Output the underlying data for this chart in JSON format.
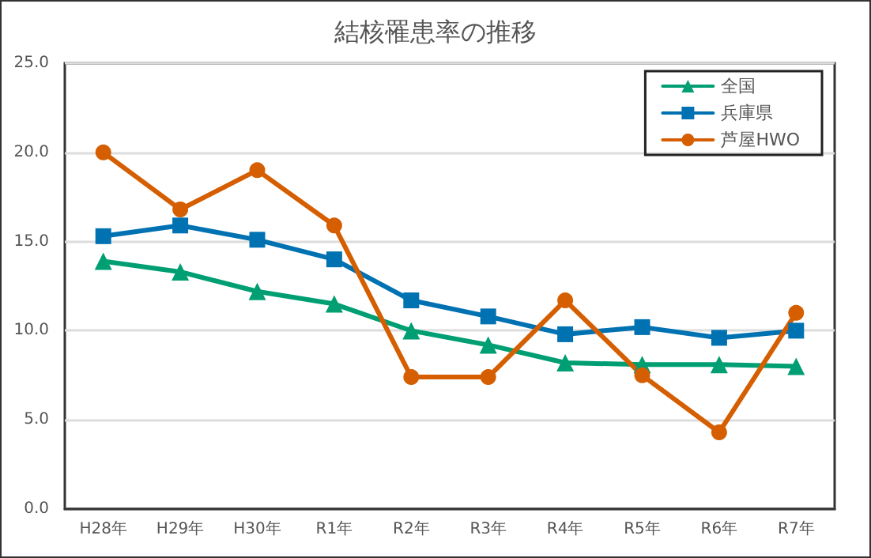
{
  "chart_data": {
    "type": "line",
    "title": "結核罹患率の推移",
    "categories": [
      "H28年",
      "H29年",
      "H30年",
      "R1年",
      "R2年",
      "R3年",
      "R4年",
      "R5年",
      "R6年",
      "R7年"
    ],
    "series": [
      {
        "name": "全国",
        "color": "#009e73",
        "marker": "triangle",
        "values": [
          13.9,
          13.3,
          12.2,
          11.5,
          10.0,
          9.2,
          8.2,
          8.1,
          8.1,
          8.0
        ]
      },
      {
        "name": "兵庫県",
        "color": "#0072b2",
        "marker": "square",
        "values": [
          15.3,
          15.9,
          15.1,
          14.0,
          11.7,
          10.8,
          9.8,
          10.2,
          9.6,
          10.0
        ]
      },
      {
        "name": "芦屋HWO",
        "color": "#d55e00",
        "marker": "circle",
        "values": [
          20.0,
          16.8,
          19.0,
          15.9,
          7.4,
          7.4,
          11.7,
          7.5,
          4.3,
          11.0
        ]
      }
    ],
    "ylim": [
      0,
      25
    ],
    "yticks": [
      {
        "value": 0,
        "label": "0.0"
      },
      {
        "value": 5,
        "label": "5.0"
      },
      {
        "value": 10,
        "label": "10.0"
      },
      {
        "value": 15,
        "label": "15.0"
      },
      {
        "value": 20,
        "label": "20.0"
      },
      {
        "value": 25,
        "label": "25.0"
      }
    ],
    "grid": "y",
    "legend": "top right",
    "line_style": "solid"
  }
}
